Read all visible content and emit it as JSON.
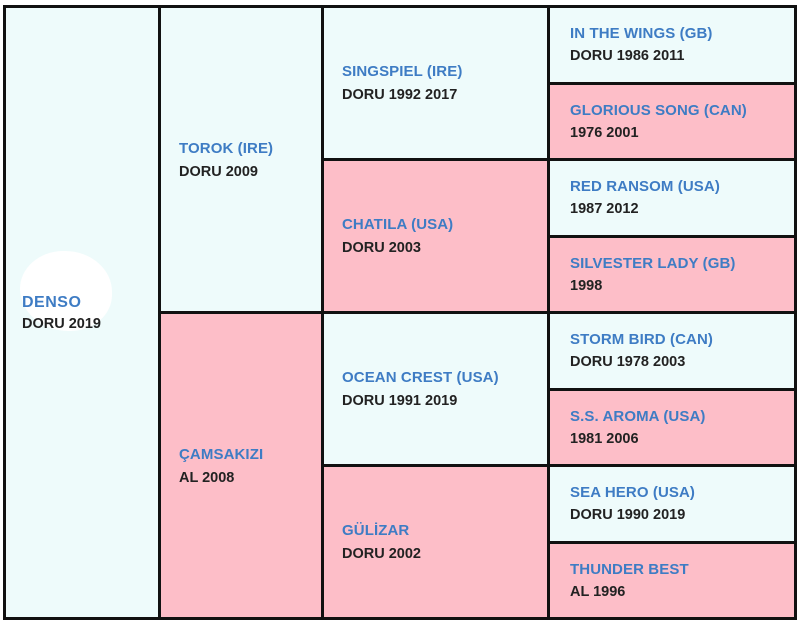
{
  "subject": {
    "name": "DENSO",
    "info": "DORU 2019"
  },
  "sire": {
    "name": "TOROK (IRE)",
    "info": "DORU 2009"
  },
  "dam": {
    "name": "ÇAMSAKIZI",
    "info": "AL 2008"
  },
  "sire_sire": {
    "name": "SINGSPIEL (IRE)",
    "info": "DORU 1992 2017"
  },
  "sire_dam": {
    "name": "CHATILA (USA)",
    "info": "DORU 2003"
  },
  "dam_sire": {
    "name": "OCEAN CREST (USA)",
    "info": "DORU 1991 2019"
  },
  "dam_dam": {
    "name": "GÜLİZAR",
    "info": "DORU 2002"
  },
  "ggp": [
    {
      "name": "IN THE WINGS (GB)",
      "info": "DORU 1986 2011"
    },
    {
      "name": "GLORIOUS SONG (CAN)",
      "info": "1976 2001"
    },
    {
      "name": "RED RANSOM (USA)",
      "info": "1987 2012"
    },
    {
      "name": "SILVESTER LADY (GB)",
      "info": "1998"
    },
    {
      "name": "STORM BIRD (CAN)",
      "info": "DORU 1978 2003"
    },
    {
      "name": "S.S. AROMA (USA)",
      "info": "1981 2006"
    },
    {
      "name": "SEA HERO (USA)",
      "info": "DORU 1990 2019"
    },
    {
      "name": "THUNDER BEST",
      "info": "AL 1996"
    }
  ],
  "colors": {
    "male_bg": "#eefbfb",
    "female_bg": "#fdbec8",
    "name_color": "#3e7cc4",
    "border": "#111111"
  }
}
